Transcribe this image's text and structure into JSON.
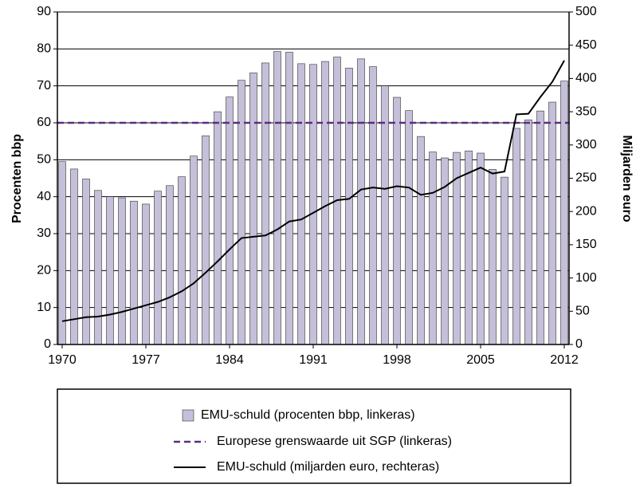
{
  "chart_data": {
    "type": "bar",
    "y_label": "Procenten bbp",
    "y2_label": "Miljarden euro",
    "x": [
      1970,
      1971,
      1972,
      1973,
      1974,
      1975,
      1976,
      1977,
      1978,
      1979,
      1980,
      1981,
      1982,
      1983,
      1984,
      1985,
      1986,
      1987,
      1988,
      1989,
      1990,
      1991,
      1992,
      1993,
      1994,
      1995,
      1996,
      1997,
      1998,
      1999,
      2000,
      2001,
      2002,
      2003,
      2004,
      2005,
      2006,
      2007,
      2008,
      2009,
      2010,
      2011,
      2012
    ],
    "xlim": [
      1969.6,
      2012.4
    ],
    "xticks": [
      1970,
      1977,
      1984,
      1991,
      1998,
      2005,
      2012
    ],
    "ylim": [
      0,
      90
    ],
    "yticks": [
      0,
      10,
      20,
      30,
      40,
      50,
      60,
      70,
      80,
      90
    ],
    "y2lim": [
      0,
      500
    ],
    "y2ticks": [
      0,
      50,
      100,
      150,
      200,
      250,
      300,
      350,
      400,
      450,
      500
    ],
    "grid": true,
    "series": [
      {
        "name": "EMU-schuld (procenten bbp, linkeras)",
        "type": "bar",
        "color": "#c6bfd9",
        "values": [
          49.5,
          47.5,
          44.8,
          41.7,
          40,
          39.7,
          38.8,
          38,
          41.5,
          43,
          45.4,
          51,
          56.5,
          63,
          67,
          71.5,
          73.5,
          76.2,
          79.3,
          79.1,
          76,
          75.8,
          76.6,
          77.8,
          74.8,
          77.3,
          75.2,
          70,
          66.9,
          63.3,
          56.3,
          52.1,
          50.5,
          52,
          52.4,
          51.8,
          47.4,
          45.3,
          58.5,
          60.8,
          63.2,
          65.6,
          71.3
        ]
      },
      {
        "name": "Europese grenswaarde uit SGP (linkeras)",
        "type": "hline",
        "color": "#5b2c86",
        "value": 60
      },
      {
        "name": "EMU-schuld (miljarden euro, rechteras)",
        "type": "line",
        "axis": "y2",
        "color": "#000000",
        "values": [
          35,
          38,
          41,
          42,
          45,
          49,
          54,
          59,
          64,
          71,
          80,
          92,
          108,
          125,
          143,
          160,
          162,
          164,
          173,
          185,
          188,
          198,
          208,
          217,
          219,
          233,
          236,
          234,
          238,
          236,
          225,
          228,
          237,
          250,
          258,
          266,
          257,
          260,
          346,
          347,
          372,
          395,
          427
        ]
      }
    ]
  }
}
